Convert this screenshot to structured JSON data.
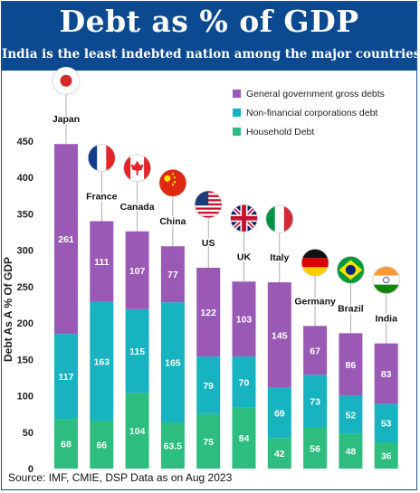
{
  "header": {
    "title": "Debt as % of GDP",
    "subtitle": "India is the least indebted nation among the major countries"
  },
  "source": "Source: IMF, CMIE, DSP Data as on Aug 2023",
  "chart_data": {
    "type": "bar",
    "stacked": true,
    "title": "Debt as % of GDP",
    "subtitle": "India is the least indebted nation among the major countries",
    "xlabel": "",
    "ylabel": "Debt As A % Of GDP",
    "ylim": [
      0,
      450
    ],
    "yticks": [
      0,
      50,
      100,
      150,
      200,
      250,
      300,
      350,
      400,
      450
    ],
    "categories": [
      "Japan",
      "France",
      "Canada",
      "China",
      "US",
      "UK",
      "Italy",
      "Germany",
      "Brazil",
      "India"
    ],
    "series": [
      {
        "name": "Household Debt",
        "color": "#2dbd7e",
        "values": [
          68,
          66,
          104,
          63.5,
          75,
          84,
          42,
          56,
          48,
          36
        ]
      },
      {
        "name": "Non-financial corporations debt",
        "color": "#17b3c0",
        "values": [
          117,
          163,
          115,
          165,
          79,
          70,
          69,
          73,
          52,
          53
        ]
      },
      {
        "name": "General government gross debts",
        "color": "#9b59b6",
        "values": [
          261,
          111,
          107,
          77,
          122,
          103,
          145,
          67,
          86,
          83
        ]
      }
    ],
    "legend": {
      "position": "top-right",
      "order": [
        "General government gross debts",
        "Non-financial corporations debt",
        "Household Debt"
      ]
    },
    "flags": [
      "japan-flag",
      "france-flag",
      "canada-flag",
      "china-flag",
      "us-flag",
      "uk-flag",
      "italy-flag",
      "germany-flag",
      "brazil-flag",
      "india-flag"
    ],
    "grid": false
  }
}
